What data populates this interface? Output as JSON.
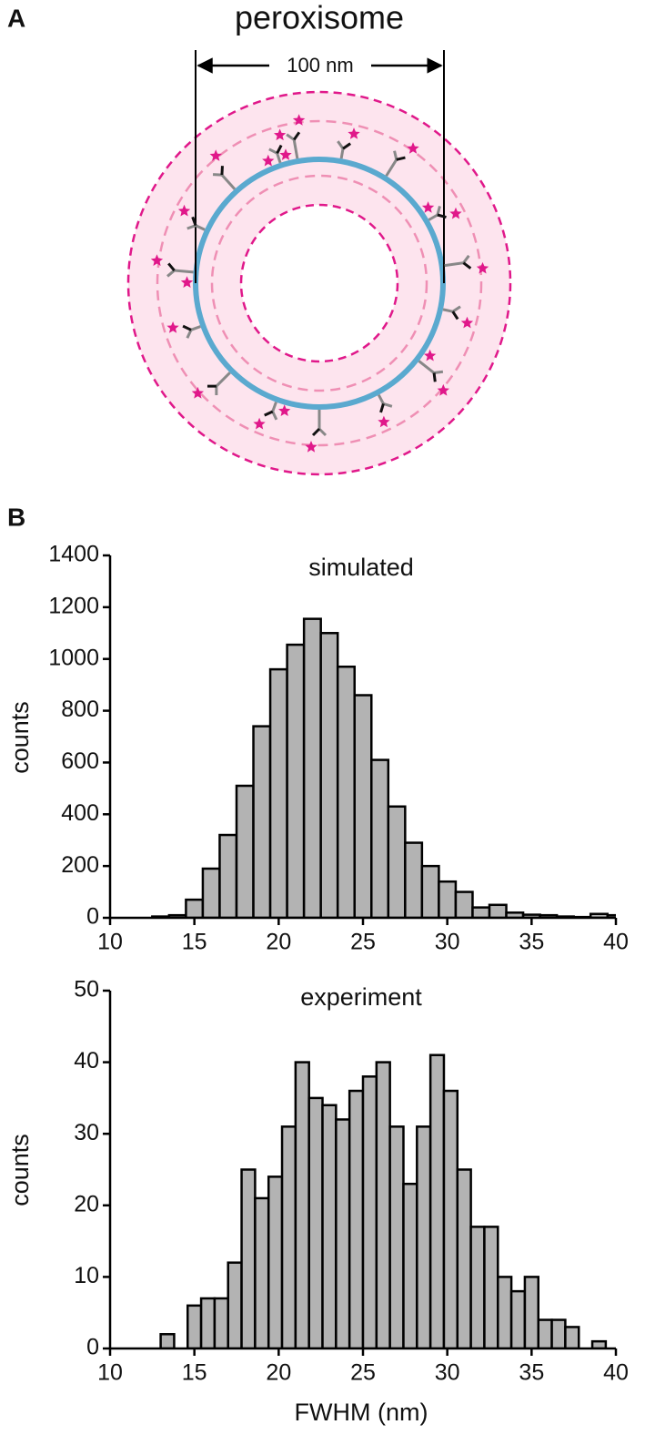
{
  "panel_a": {
    "label": "A",
    "title": "peroxisome",
    "scale_label": "100 nm"
  },
  "panel_b": {
    "label": "B"
  },
  "chart_data": [
    {
      "type": "histogram",
      "title": "simulated",
      "ylabel": "counts",
      "color": "#b3b3b3",
      "bins": [
        12.5,
        13.5,
        14.5,
        15.5,
        16.5,
        17.5,
        18.5,
        19.5,
        20.5,
        21.5,
        22.5,
        23.5,
        24.5,
        25.5,
        26.5,
        27.5,
        28.5,
        29.5,
        30.5,
        31.5,
        32.5,
        33.5,
        34.5,
        35.5,
        36.5,
        37.5,
        38.5,
        39.5,
        40.5
      ],
      "values": [
        5,
        10,
        70,
        190,
        320,
        510,
        740,
        960,
        1055,
        1155,
        1100,
        970,
        860,
        610,
        430,
        290,
        200,
        140,
        100,
        40,
        50,
        20,
        12,
        10,
        5,
        3,
        15,
        10
      ],
      "xlim": [
        10,
        40
      ],
      "xticks": [
        10,
        15,
        20,
        25,
        30,
        35,
        40
      ],
      "ylim": [
        0,
        1400
      ],
      "yticks": [
        0,
        200,
        400,
        600,
        800,
        1000,
        1200,
        1400
      ]
    },
    {
      "type": "histogram",
      "title": "experiment",
      "ylabel": "counts",
      "xlabel": "FWHM (nm)",
      "color": "#b3b3b3",
      "bins": [
        13,
        13.8,
        14.6,
        15.4,
        16.2,
        17,
        17.8,
        18.6,
        19.4,
        20.2,
        21,
        21.8,
        22.6,
        23.4,
        24.2,
        25,
        25.8,
        26.6,
        27.4,
        28.2,
        29,
        29.8,
        30.6,
        31.4,
        32.2,
        33,
        33.8,
        34.6,
        35.4,
        36.2,
        37,
        37.8,
        38.6,
        39.4
      ],
      "values": [
        2,
        0,
        6,
        7,
        7,
        12,
        25,
        21,
        24,
        31,
        40,
        35,
        34,
        32,
        36,
        38,
        40,
        31,
        23,
        31,
        41,
        36,
        25,
        17,
        17,
        10,
        8,
        10,
        4,
        4,
        3,
        0,
        1
      ],
      "xlim": [
        10,
        40
      ],
      "xticks": [
        10,
        15,
        20,
        25,
        30,
        35,
        40
      ],
      "ylim": [
        0,
        50
      ],
      "yticks": [
        0,
        10,
        20,
        30,
        40,
        50
      ]
    }
  ]
}
